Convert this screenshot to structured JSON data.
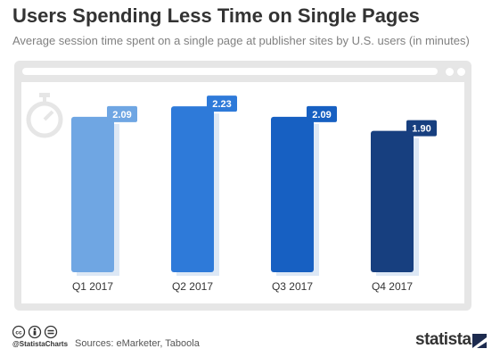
{
  "header": {
    "title": "Users Spending Less Time on Single Pages",
    "subtitle": "Average session time spent on a single page at publisher sites by U.S. users (in minutes)"
  },
  "footer": {
    "handle": "@StatistaCharts",
    "sources": "Sources: eMarketer, Taboola",
    "brand": "statista"
  },
  "icons": [
    "stopwatch-icon",
    "creative-commons-icon",
    "attribution-icon",
    "no-derivatives-icon",
    "statista-logo-mark"
  ],
  "chart_data": {
    "type": "bar",
    "categories": [
      "Q1 2017",
      "Q2 2017",
      "Q3 2017",
      "Q4 2017"
    ],
    "values": [
      2.09,
      2.23,
      2.09,
      1.9
    ],
    "value_labels": [
      "2.09",
      "2.23",
      "2.09",
      "1.90"
    ],
    "bar_colors": [
      "#6fa6e3",
      "#2e7ad9",
      "#1760c2",
      "#173f7f"
    ],
    "label_colors": [
      "#6fa6e3",
      "#2e7ad9",
      "#1760c2",
      "#173f7f"
    ],
    "shadow_color": "#dde8f5",
    "ylim": [
      0,
      2.4
    ],
    "grid": false,
    "legend": "none"
  }
}
